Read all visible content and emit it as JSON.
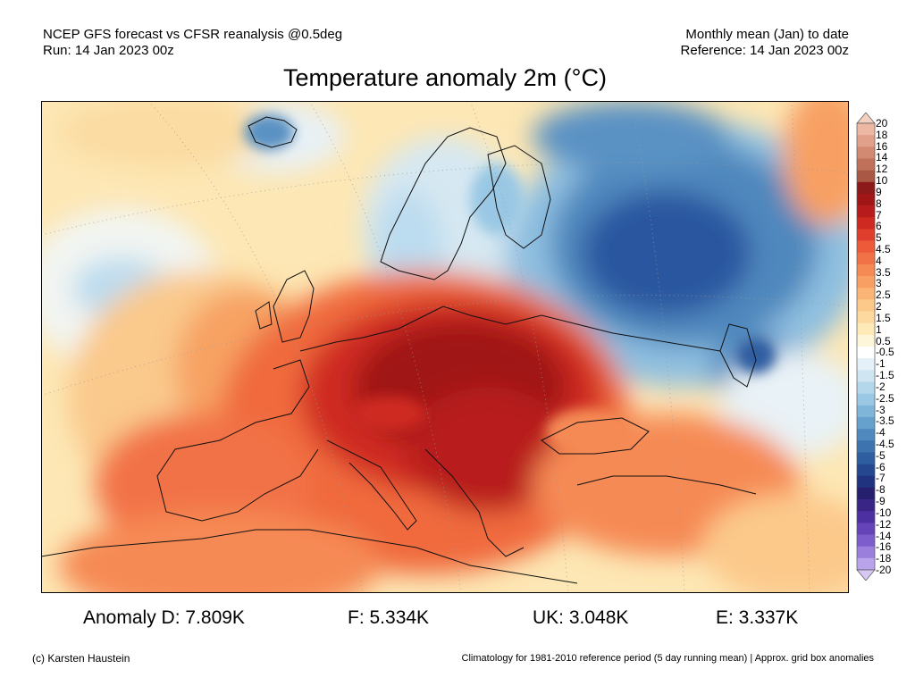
{
  "header": {
    "left_line1": "NCEP GFS forecast vs CFSR reanalysis @0.5deg",
    "left_line2": "Run: 14 Jan 2023 00z",
    "right_line1": "Monthly mean (Jan) to date",
    "right_line2": "Reference: 14 Jan 2023 00z"
  },
  "title": "Temperature anomaly 2m (°C)",
  "legend": {
    "labels": [
      "20",
      "18",
      "16",
      "14",
      "12",
      "10",
      "9",
      "8",
      "7",
      "6",
      "5",
      "4.5",
      "4",
      "3.5",
      "3",
      "2.5",
      "2",
      "1.5",
      "1",
      "0.5",
      "-0.5",
      "-1",
      "-1.5",
      "-2",
      "-2.5",
      "-3",
      "-3.5",
      "-4",
      "-4.5",
      "-5",
      "-6",
      "-7",
      "-8",
      "-9",
      "-10",
      "-12",
      "-14",
      "-16",
      "-18",
      "-20"
    ],
    "colors": [
      "#f4d0c0",
      "#ecb8a4",
      "#e0a08a",
      "#d38a72",
      "#c0715a",
      "#a85844",
      "#8c1a1a",
      "#a01515",
      "#b81b1b",
      "#cf2a22",
      "#e03e2c",
      "#ec5a3a",
      "#f27247",
      "#f68a55",
      "#f8a064",
      "#fab576",
      "#fcc98b",
      "#fdd99f",
      "#feeab6",
      "#fef6d8",
      "#ffffff",
      "#e4f1f8",
      "#cfe5f2",
      "#b5d7ec",
      "#9ac8e4",
      "#7fb5d9",
      "#66a0cc",
      "#5089bd",
      "#3d73ae",
      "#2e5da0",
      "#24478f",
      "#1f337e",
      "#261f6e",
      "#382585",
      "#4c2fa0",
      "#6543b8",
      "#7d5dcb",
      "#9b7fdc",
      "#b9a3ea",
      "#d6c8f4"
    ]
  },
  "stats": {
    "germany": "Anomaly D: 7.809K",
    "france": "F: 5.334K",
    "uk": "UK: 3.048K",
    "spain": "E: 3.337K"
  },
  "footer": {
    "left": "(c) Karsten Haustein",
    "right": "Climatology for 1981-2010 reference period (5 day running mean) | Approx. grid box anomalies"
  }
}
